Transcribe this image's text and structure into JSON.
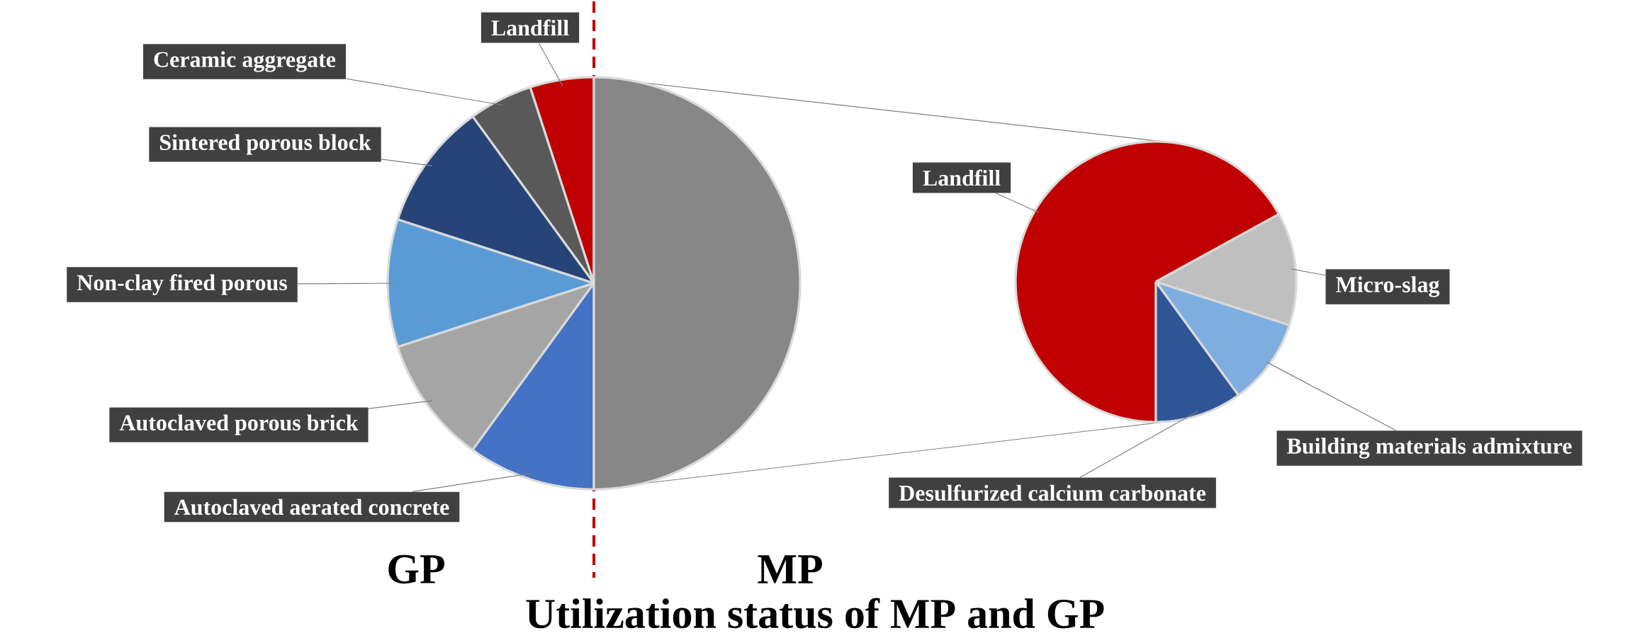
{
  "chart_data": [
    {
      "type": "pie",
      "title": "Utilization status of MP and GP",
      "xlabel": "GP",
      "categories": [
        "Landfill",
        "Ceramic aggregate",
        "Sintered porous block",
        "Non-clay fired porous",
        "Autoclaved porous brick",
        "Autoclaved aerated concrete",
        null
      ],
      "values": [
        5,
        5,
        10,
        10,
        10,
        10,
        50
      ],
      "colors": [
        "#c00000",
        "#595959",
        "#264478",
        "#5b9bd5",
        "#a5a5a5",
        "#4472c4",
        "#878787"
      ]
    },
    {
      "type": "pie",
      "xlabel": "MP",
      "categories": [
        "Landfill",
        "Micro-slag",
        "Building materials admixture",
        "Desulfurized calcium carbonate"
      ],
      "values": [
        67,
        13,
        10,
        10
      ],
      "colors": [
        "#c00000",
        "#bfbfbf",
        "#7eaee0",
        "#2f5597"
      ]
    }
  ]
}
